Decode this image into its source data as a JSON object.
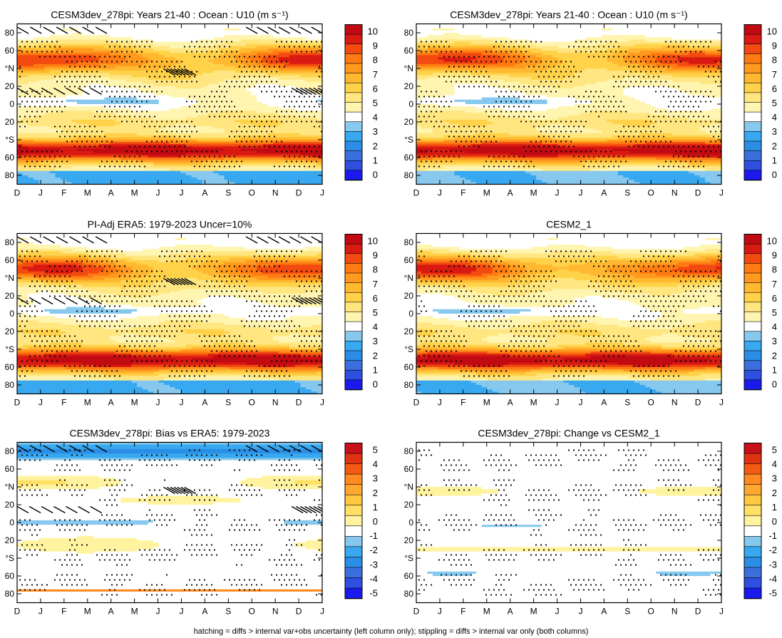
{
  "chart_data": [
    {
      "type": "heatmap",
      "title": "CESM3dev_278pi: Years 21-40 : Ocean : U10 (m s⁻¹)",
      "x_ticks": [
        "D",
        "J",
        "F",
        "M",
        "A",
        "M",
        "J",
        "J",
        "A",
        "S",
        "O",
        "N",
        "D",
        "J"
      ],
      "y_ticks": [
        "80",
        "60",
        "°N",
        "20",
        "0",
        "20",
        "°S",
        "60",
        "80"
      ],
      "ylim": [
        -90,
        90
      ],
      "colorbar": [
        "10",
        "9",
        "8",
        "7",
        "6",
        "5",
        "4",
        "3",
        "2",
        "1",
        "0"
      ],
      "field": "mean",
      "variant": 0,
      "hatched": true
    },
    {
      "type": "heatmap",
      "title": "CESM3dev_278pi: Years 21-40 : Ocean : U10 (m s⁻¹)",
      "x_ticks": [
        "D",
        "J",
        "F",
        "M",
        "A",
        "M",
        "J",
        "J",
        "A",
        "S",
        "O",
        "N",
        "D",
        "J"
      ],
      "y_ticks": [
        "80",
        "60",
        "°N",
        "20",
        "0",
        "20",
        "°S",
        "60",
        "80"
      ],
      "ylim": [
        -90,
        90
      ],
      "colorbar": [
        "10",
        "9",
        "8",
        "7",
        "6",
        "5",
        "4",
        "3",
        "2",
        "1",
        "0"
      ],
      "field": "mean",
      "variant": 1,
      "hatched": false
    },
    {
      "type": "heatmap",
      "title": "PI-Adj ERA5: 1979-2023 Uncer=10%",
      "x_ticks": [
        "D",
        "J",
        "F",
        "M",
        "A",
        "M",
        "J",
        "J",
        "A",
        "S",
        "O",
        "N",
        "D",
        "J"
      ],
      "y_ticks": [
        "80",
        "60",
        "°N",
        "20",
        "0",
        "20",
        "°S",
        "60",
        "80"
      ],
      "ylim": [
        -90,
        90
      ],
      "colorbar": [
        "10",
        "9",
        "8",
        "7",
        "6",
        "5",
        "4",
        "3",
        "2",
        "1",
        "0"
      ],
      "field": "mean",
      "variant": 2,
      "hatched": true
    },
    {
      "type": "heatmap",
      "title": "CESM2_1",
      "x_ticks": [
        "D",
        "J",
        "F",
        "M",
        "A",
        "M",
        "J",
        "J",
        "A",
        "S",
        "O",
        "N",
        "D",
        "J"
      ],
      "y_ticks": [
        "80",
        "60",
        "°N",
        "20",
        "0",
        "20",
        "°S",
        "60",
        "80"
      ],
      "ylim": [
        -90,
        90
      ],
      "colorbar": [
        "10",
        "9",
        "8",
        "7",
        "6",
        "5",
        "4",
        "3",
        "2",
        "1",
        "0"
      ],
      "field": "mean",
      "variant": 3,
      "hatched": false
    },
    {
      "type": "heatmap",
      "title": "CESM3dev_278pi: Bias vs ERA5: 1979-2023",
      "x_ticks": [
        "D",
        "J",
        "F",
        "M",
        "A",
        "M",
        "J",
        "J",
        "A",
        "S",
        "O",
        "N",
        "D",
        "J"
      ],
      "y_ticks": [
        "80",
        "60",
        "°N",
        "20",
        "0",
        "20",
        "°S",
        "60",
        "80"
      ],
      "ylim": [
        -90,
        90
      ],
      "colorbar": [
        "5",
        "4",
        "3",
        "2",
        "1",
        "0",
        "-1",
        "-2",
        "-3",
        "-4",
        "-5"
      ],
      "field": "diff",
      "variant": 4,
      "hatched": true
    },
    {
      "type": "heatmap",
      "title": "CESM3dev_278pi: Change vs CESM2_1",
      "x_ticks": [
        "D",
        "J",
        "F",
        "M",
        "A",
        "M",
        "J",
        "J",
        "A",
        "S",
        "O",
        "N",
        "D",
        "J"
      ],
      "y_ticks": [
        "80",
        "60",
        "°N",
        "20",
        "0",
        "20",
        "°S",
        "60",
        "80"
      ],
      "ylim": [
        -90,
        90
      ],
      "colorbar": [
        "5",
        "4",
        "3",
        "2",
        "1",
        "0",
        "-1",
        "-2",
        "-3",
        "-4",
        "-5"
      ],
      "field": "diff",
      "variant": 5,
      "hatched": false
    }
  ],
  "colors": {
    "mean": [
      "#1a1aee",
      "#2e4fe0",
      "#3b6fde",
      "#2b8ee6",
      "#38a8f0",
      "#86c8ee",
      "#ffffff",
      "#fff5b0",
      "#ffe680",
      "#ffd24a",
      "#ffb830",
      "#ff9a1f",
      "#ff7a12",
      "#f24a10",
      "#d91a12",
      "#c20a12"
    ],
    "diff": [
      "#1a1aee",
      "#2e4fe0",
      "#3b6fde",
      "#2b8ee6",
      "#38a8f0",
      "#86c8ee",
      "#ffffff",
      "#fff3a0",
      "#ffe066",
      "#ffc840",
      "#ffa830",
      "#ff8a20",
      "#f45a14",
      "#e03212",
      "#c8101a"
    ]
  },
  "footer": "hatching = diffs > internal var+obs uncertainty (left column only); stippling = diffs > internal var only (both columns)"
}
